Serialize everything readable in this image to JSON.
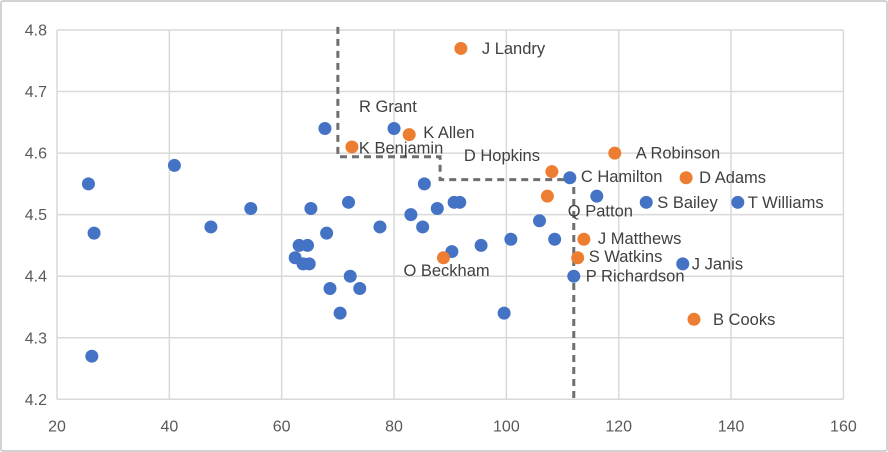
{
  "chart_data": {
    "type": "scatter",
    "title": "",
    "xlabel": "",
    "ylabel": "",
    "x_axis": {
      "min": 20,
      "max": 160,
      "tick_labels": [
        "20",
        "40",
        "60",
        "80",
        "100",
        "120",
        "140",
        "160"
      ]
    },
    "y_axis": {
      "min": 4.2,
      "max": 4.8,
      "tick_labels": [
        "4.2",
        "4.3",
        "4.4",
        "4.5",
        "4.6",
        "4.7",
        "4.8"
      ]
    },
    "grid": true,
    "legend_position": "none",
    "series": [
      {
        "name": "players-blue",
        "color": "#4472C4",
        "marker_radius": 6.5,
        "points": [
          {
            "x": 25.6,
            "y": 4.55
          },
          {
            "x": 26.2,
            "y": 4.27
          },
          {
            "x": 26.6,
            "y": 4.47
          },
          {
            "x": 40.9,
            "y": 4.58
          },
          {
            "x": 47.4,
            "y": 4.48
          },
          {
            "x": 54.5,
            "y": 4.51
          },
          {
            "x": 62.4,
            "y": 4.43
          },
          {
            "x": 63.1,
            "y": 4.45
          },
          {
            "x": 63.8,
            "y": 4.42
          },
          {
            "x": 64.6,
            "y": 4.45
          },
          {
            "x": 64.9,
            "y": 4.42
          },
          {
            "x": 65.2,
            "y": 4.51
          },
          {
            "x": 67.7,
            "y": 4.64
          },
          {
            "x": 68.0,
            "y": 4.47
          },
          {
            "x": 68.6,
            "y": 4.38
          },
          {
            "x": 70.4,
            "y": 4.34
          },
          {
            "x": 71.9,
            "y": 4.52
          },
          {
            "x": 72.2,
            "y": 4.4
          },
          {
            "x": 73.9,
            "y": 4.38
          },
          {
            "x": 77.5,
            "y": 4.48
          },
          {
            "x": 80.0,
            "y": 4.64,
            "label": "R Grant",
            "label_dx": -35,
            "label_dy": -22
          },
          {
            "x": 83.0,
            "y": 4.5
          },
          {
            "x": 85.1,
            "y": 4.48
          },
          {
            "x": 85.4,
            "y": 4.55
          },
          {
            "x": 87.7,
            "y": 4.51
          },
          {
            "x": 90.3,
            "y": 4.44
          },
          {
            "x": 90.7,
            "y": 4.52
          },
          {
            "x": 91.7,
            "y": 4.52
          },
          {
            "x": 95.5,
            "y": 4.45
          },
          {
            "x": 99.6,
            "y": 4.34
          },
          {
            "x": 100.8,
            "y": 4.46
          },
          {
            "x": 105.9,
            "y": 4.49
          },
          {
            "x": 108.6,
            "y": 4.46
          },
          {
            "x": 111.3,
            "y": 4.56,
            "label": "C Hamilton",
            "label_dx": 11,
            "label_dy": -1
          },
          {
            "x": 112.0,
            "y": 4.4,
            "label": "P Richardson",
            "label_dx": 12,
            "label_dy": 0
          },
          {
            "x": 116.1,
            "y": 4.53,
            "label": "Q Patton",
            "label_dx": -29,
            "label_dy": 15
          },
          {
            "x": 124.9,
            "y": 4.52,
            "label": "S Bailey",
            "label_dx": 11,
            "label_dy": 0
          },
          {
            "x": 131.4,
            "y": 4.42,
            "label": "J Janis",
            "label_dx": 9,
            "label_dy": 0
          },
          {
            "x": 141.2,
            "y": 4.52,
            "label": "T Williams",
            "label_dx": 10,
            "label_dy": 0
          }
        ]
      },
      {
        "name": "players-orange",
        "color": "#ED7D31",
        "marker_radius": 6.5,
        "points": [
          {
            "x": 91.9,
            "y": 4.77,
            "label": "J Landry",
            "label_dx": 21,
            "label_dy": 0
          },
          {
            "x": 82.7,
            "y": 4.63,
            "label": "K Allen",
            "label_dx": 14,
            "label_dy": -2
          },
          {
            "x": 72.5,
            "y": 4.61,
            "label": "K Benjamin",
            "label_dx": 7,
            "label_dy": 1
          },
          {
            "x": 108.1,
            "y": 4.57,
            "label": "D Hopkins",
            "label_dx": -88,
            "label_dy": -16
          },
          {
            "x": 107.3,
            "y": 4.53
          },
          {
            "x": 119.3,
            "y": 4.6,
            "label": "A Robinson",
            "label_dx": 21,
            "label_dy": 0
          },
          {
            "x": 132.0,
            "y": 4.56,
            "label": "D Adams",
            "label_dx": 13,
            "label_dy": 0
          },
          {
            "x": 113.8,
            "y": 4.46,
            "label": "J Matthews",
            "label_dx": 14,
            "label_dy": -1
          },
          {
            "x": 112.7,
            "y": 4.43,
            "label": "S Watkins",
            "label_dx": 11,
            "label_dy": -1
          },
          {
            "x": 88.8,
            "y": 4.43,
            "label": "O Beckham",
            "label_dx": -40,
            "label_dy": 13
          },
          {
            "x": 133.4,
            "y": 4.33,
            "label": "B Cooks",
            "label_dx": 19,
            "label_dy": 0
          }
        ]
      }
    ],
    "boundary_line": {
      "style": "dashed",
      "color": "#6F6F6F",
      "width": 3,
      "dash": [
        7,
        5
      ],
      "path": [
        [
          70,
          4.805
        ],
        [
          70,
          4.594
        ],
        [
          88.2,
          4.594
        ],
        [
          88.2,
          4.557
        ],
        [
          112,
          4.557
        ],
        [
          112,
          4.195
        ]
      ]
    }
  },
  "styles": {
    "background": "#FFFFFF",
    "frame_border_color": "#D2D2D2",
    "grid_color": "#D9D9D9",
    "tick_label_color": "#595959",
    "data_label_color": "#404040"
  }
}
